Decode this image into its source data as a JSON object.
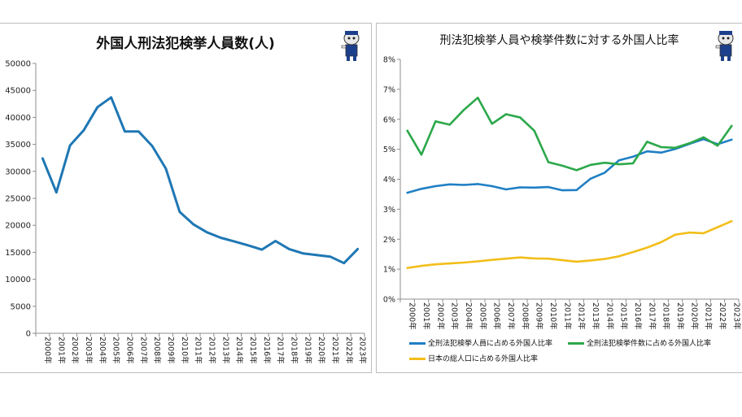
{
  "chart_data": [
    {
      "type": "line",
      "title": "外国人刑法犯検挙人員数(人)",
      "categories": [
        "2000年",
        "2001年",
        "2002年",
        "2003年",
        "2004年",
        "2005年",
        "2006年",
        "2007年",
        "2008年",
        "2009年",
        "2010年",
        "2011年",
        "2012年",
        "2013年",
        "2014年",
        "2015年",
        "2016年",
        "2017年",
        "2018年",
        "2019年",
        "2020年",
        "2021年",
        "2022年",
        "2023年"
      ],
      "series": [
        {
          "values": [
            32400,
            26100,
            34800,
            37600,
            41900,
            43700,
            37400,
            37400,
            34700,
            30500,
            22500,
            20200,
            18700,
            17700,
            17000,
            16300,
            15500,
            17100,
            15600,
            14800,
            14500,
            14200,
            13000,
            15600
          ],
          "color": "#1f77b4"
        }
      ],
      "ylim": [
        0,
        50000
      ],
      "yticks": [
        "0",
        "5000",
        "10000",
        "15000",
        "20000",
        "25000",
        "30000",
        "35000",
        "40000",
        "45000",
        "50000"
      ],
      "grid": false,
      "xlabel": "",
      "ylabel": ""
    },
    {
      "type": "line",
      "title": "刑法犯検挙人員や検挙件数に対する外国人比率",
      "categories": [
        "2000年",
        "2001年",
        "2002年",
        "2003年",
        "2004年",
        "2005年",
        "2006年",
        "2007年",
        "2008年",
        "2009年",
        "2010年",
        "2011年",
        "2012年",
        "2013年",
        "2014年",
        "2015年",
        "2016年",
        "2017年",
        "2018年",
        "2019年",
        "2020年",
        "2021年",
        "2022年",
        "2023年"
      ],
      "series": [
        {
          "name": "全刑法犯検挙人員に占める外国人比率",
          "color": "#1f7fc4",
          "values": [
            3.55,
            3.68,
            3.77,
            3.83,
            3.81,
            3.84,
            3.77,
            3.66,
            3.73,
            3.72,
            3.74,
            3.63,
            3.64,
            4.02,
            4.22,
            4.63,
            4.75,
            4.93,
            4.89,
            5.01,
            5.18,
            5.34,
            5.17,
            5.32
          ]
        },
        {
          "name": "全刑法犯検挙件数に占める外国人比率",
          "color": "#2ca84a",
          "values": [
            5.62,
            4.82,
            5.93,
            5.82,
            6.31,
            6.72,
            5.85,
            6.17,
            6.06,
            5.62,
            4.57,
            4.45,
            4.3,
            4.48,
            4.55,
            4.5,
            4.53,
            5.25,
            5.07,
            5.05,
            5.2,
            5.4,
            5.12,
            5.78
          ]
        },
        {
          "name": "日本の総人口に占める外国人比率",
          "color": "#f2be19",
          "values": [
            1.04,
            1.11,
            1.16,
            1.19,
            1.22,
            1.26,
            1.31,
            1.35,
            1.39,
            1.36,
            1.35,
            1.3,
            1.25,
            1.29,
            1.34,
            1.43,
            1.57,
            1.72,
            1.9,
            2.15,
            2.22,
            2.2,
            2.4,
            2.6
          ]
        }
      ],
      "ylim": [
        0,
        8
      ],
      "yticks": [
        "0%",
        "1%",
        "2%",
        "3%",
        "4%",
        "5%",
        "6%",
        "7%",
        "8%"
      ],
      "grid": false,
      "legend": "bottom",
      "xlabel": "",
      "ylabel": ""
    }
  ]
}
